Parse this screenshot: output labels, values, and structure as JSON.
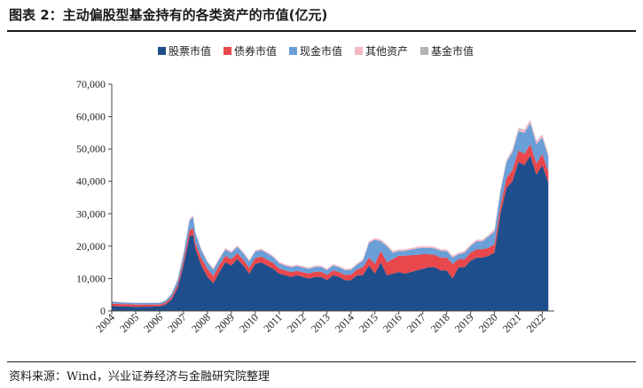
{
  "title": "图表 2：主动偏股型基金持有的各类资产的市值(亿元)",
  "source": "资料来源：Wind，兴业证券经济与金融研究院整理",
  "chart_data": {
    "type": "area",
    "stacked": true,
    "title": "图表 2：主动偏股型基金持有的各类资产的市值(亿元)",
    "xlabel": "",
    "ylabel": "",
    "ylim": [
      0,
      70000
    ],
    "yticks": [
      0,
      10000,
      20000,
      30000,
      40000,
      50000,
      60000,
      70000
    ],
    "ytick_labels": [
      "0",
      "10,000",
      "20,000",
      "30,000",
      "40,000",
      "50,000",
      "60,000",
      "70,000"
    ],
    "xtick_labels": [
      "2004",
      "2005",
      "2006",
      "2007",
      "2008",
      "2009",
      "2010",
      "2011",
      "2012",
      "2013",
      "2014",
      "2015",
      "2016",
      "2017",
      "2018",
      "2019",
      "2020",
      "2021",
      "2022"
    ],
    "x_range": [
      2004.0,
      2022.5
    ],
    "legend_position": "top",
    "grid": false,
    "x": [
      2004.0,
      2004.5,
      2005.0,
      2005.5,
      2006.0,
      2006.25,
      2006.5,
      2006.75,
      2007.0,
      2007.25,
      2007.4,
      2007.5,
      2007.75,
      2008.0,
      2008.25,
      2008.5,
      2008.75,
      2009.0,
      2009.25,
      2009.5,
      2009.75,
      2010.0,
      2010.25,
      2010.5,
      2010.75,
      2011.0,
      2011.25,
      2011.5,
      2011.75,
      2012.0,
      2012.25,
      2012.5,
      2012.75,
      2013.0,
      2013.25,
      2013.5,
      2013.75,
      2014.0,
      2014.25,
      2014.5,
      2014.75,
      2015.0,
      2015.25,
      2015.5,
      2015.75,
      2016.0,
      2016.25,
      2016.5,
      2016.75,
      2017.0,
      2017.25,
      2017.5,
      2017.75,
      2018.0,
      2018.25,
      2018.5,
      2018.75,
      2019.0,
      2019.25,
      2019.5,
      2019.75,
      2020.0,
      2020.25,
      2020.5,
      2020.75,
      2021.0,
      2021.25,
      2021.5,
      2021.75,
      2022.0,
      2022.25
    ],
    "series": [
      {
        "name": "股票市值",
        "color": "#1f4e8c",
        "values": [
          1500,
          1400,
          1300,
          1350,
          1400,
          2000,
          3500,
          7000,
          14000,
          23000,
          23500,
          19000,
          14000,
          10500,
          8500,
          12000,
          15000,
          14000,
          16000,
          14000,
          11500,
          14500,
          15000,
          14000,
          13000,
          11500,
          11000,
          10500,
          11000,
          10500,
          10000,
          10500,
          10500,
          9500,
          11000,
          10500,
          9500,
          9500,
          11000,
          11000,
          14000,
          11500,
          15000,
          11000,
          11500,
          12000,
          11500,
          12000,
          12500,
          13000,
          13500,
          13500,
          12500,
          12500,
          10000,
          13500,
          13500,
          15500,
          16500,
          16500,
          17000,
          18000,
          30000,
          38000,
          40000,
          46000,
          45000,
          48000,
          42000,
          45000,
          39500
        ]
      },
      {
        "name": "债券市值",
        "color": "#e8474c",
        "values": [
          800,
          700,
          700,
          650,
          600,
          600,
          800,
          1000,
          1500,
          2000,
          2000,
          2000,
          2200,
          2500,
          2300,
          2200,
          2000,
          2000,
          1800,
          1800,
          1800,
          1800,
          1800,
          1800,
          1800,
          1600,
          1500,
          1500,
          1400,
          1400,
          1500,
          1600,
          1600,
          1600,
          1500,
          1500,
          1600,
          1700,
          1800,
          2500,
          2500,
          3000,
          3500,
          4000,
          4500,
          5000,
          5500,
          5200,
          4800,
          4500,
          4000,
          3800,
          4000,
          4000,
          4500,
          2500,
          2500,
          2500,
          2500,
          2500,
          2500,
          2500,
          2500,
          3000,
          3500,
          3500,
          3500,
          3500,
          3500,
          3500,
          3500
        ]
      },
      {
        "name": "现金市值",
        "color": "#6a9fd8",
        "values": [
          600,
          500,
          500,
          500,
          500,
          600,
          900,
          1500,
          2000,
          3000,
          3500,
          3000,
          2500,
          2000,
          2000,
          1800,
          2000,
          2000,
          2000,
          2000,
          2000,
          2000,
          2000,
          2000,
          1800,
          1600,
          1500,
          1500,
          1500,
          1500,
          1500,
          1500,
          1500,
          1500,
          1500,
          1500,
          1500,
          1500,
          1500,
          2000,
          4500,
          7500,
          3000,
          5000,
          2000,
          1500,
          1500,
          1700,
          2000,
          2000,
          2000,
          2000,
          2000,
          2000,
          2000,
          1500,
          2000,
          2000,
          2500,
          2500,
          3500,
          4000,
          4500,
          5000,
          5500,
          6000,
          6500,
          6500,
          6000,
          5000,
          4500
        ]
      },
      {
        "name": "其他资产",
        "color": "#f5b8c4",
        "values": [
          100,
          100,
          100,
          100,
          100,
          100,
          200,
          300,
          400,
          500,
          500,
          400,
          400,
          400,
          400,
          400,
          400,
          400,
          400,
          400,
          400,
          400,
          400,
          400,
          400,
          400,
          400,
          400,
          400,
          400,
          400,
          400,
          400,
          400,
          400,
          400,
          400,
          400,
          400,
          400,
          500,
          500,
          500,
          500,
          500,
          500,
          500,
          500,
          500,
          500,
          500,
          500,
          500,
          500,
          500,
          500,
          500,
          500,
          500,
          500,
          500,
          600,
          600,
          600,
          700,
          800,
          800,
          800,
          800,
          800,
          800
        ]
      },
      {
        "name": "基金市值",
        "color": "#b4b4b4",
        "values": [
          0,
          0,
          0,
          0,
          0,
          0,
          0,
          0,
          0,
          0,
          0,
          0,
          0,
          0,
          0,
          0,
          0,
          0,
          0,
          0,
          0,
          0,
          0,
          0,
          0,
          0,
          0,
          0,
          0,
          0,
          0,
          0,
          0,
          0,
          0,
          0,
          0,
          0,
          0,
          0,
          0,
          0,
          0,
          0,
          0,
          0,
          0,
          0,
          0,
          0,
          0,
          0,
          0,
          0,
          0,
          0,
          0,
          0,
          0,
          0,
          0,
          100,
          100,
          100,
          100,
          200,
          200,
          200,
          200,
          200,
          200
        ]
      }
    ]
  }
}
